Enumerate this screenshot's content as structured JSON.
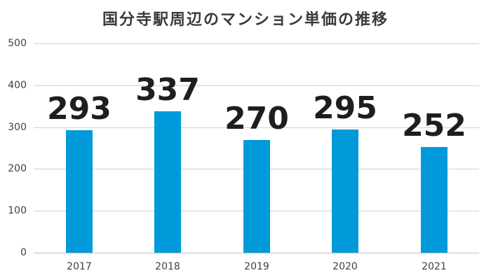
{
  "chart_data": {
    "type": "bar",
    "title": "国分寺駅周辺のマンション単価の推移",
    "categories": [
      "2017",
      "2018",
      "2019",
      "2020",
      "2021"
    ],
    "values": [
      293,
      337,
      270,
      295,
      252
    ],
    "data_labels": [
      "293",
      "337",
      "270",
      "295",
      "252"
    ],
    "xlabel": "",
    "ylabel": "",
    "ylim": [
      0,
      500
    ],
    "yticks": [
      "0",
      "100",
      "200",
      "300",
      "400",
      "500"
    ],
    "grid": true,
    "legend": null,
    "bar_color": "#009ADB"
  }
}
